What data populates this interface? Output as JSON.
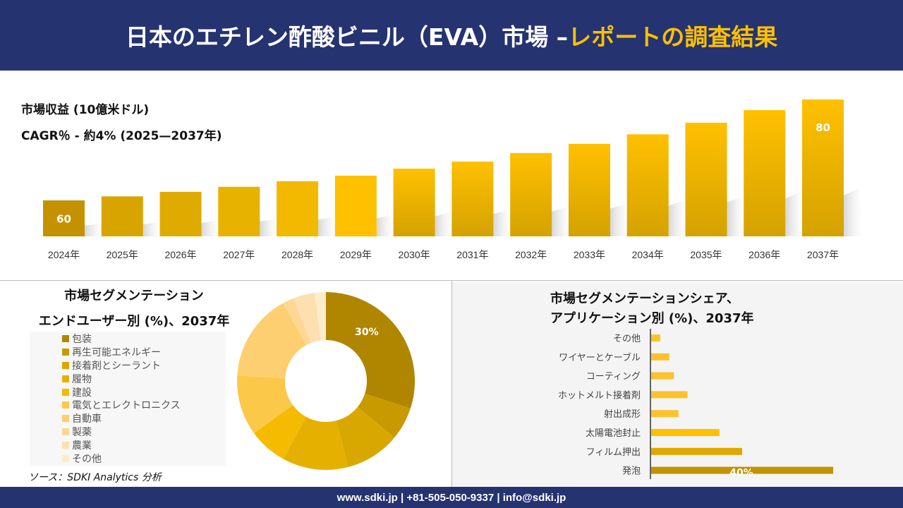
{
  "header": {
    "title_main": "日本のエチレン酢酸ビニル（EVA）市場 –",
    "title_accent": "レポートの調査結果"
  },
  "footer": {
    "contact": "www.sdki.jp | +81-505-050-9337 | info@sdki.jp"
  },
  "source": "ソース：SDKI Analytics 分析",
  "colors": {
    "header_bg": "#253370",
    "accent": "#ffc000"
  },
  "chart_data": [
    {
      "type": "bar",
      "title": "市場収益 (10億米ドル)",
      "subtitle": "CAGR％ - 約4% (2025—2037年)",
      "categories": [
        "2024年",
        "2025年",
        "2026年",
        "2027年",
        "2028年",
        "2029年",
        "2030年",
        "2031年",
        "2032年",
        "2033年",
        "2034年",
        "2035年",
        "2036年",
        "2037年"
      ],
      "values": [
        60,
        60.8,
        61.7,
        62.7,
        63.8,
        64.9,
        66.3,
        67.7,
        69.4,
        71.2,
        73.1,
        75.4,
        77.9,
        80
      ],
      "data_labels": {
        "0": "60",
        "13": "80"
      }
    },
    {
      "type": "pie",
      "donut": true,
      "title": "市場セグメンテーション",
      "subtitle": "エンドユーザー別 (%)、2037年",
      "categories": [
        "包装",
        "再生可能エネルギー",
        "接着剤とシーラント",
        "履物",
        "建設",
        "電気とエレクトロニクス",
        "自動車",
        "製薬",
        "農業",
        "その他"
      ],
      "values": [
        30,
        6,
        10,
        12,
        7,
        11,
        16,
        2,
        4,
        2
      ],
      "colors": [
        "#b08500",
        "#c89a00",
        "#d9a800",
        "#e6b000",
        "#f5bb00",
        "#fcc84a",
        "#fdcf70",
        "#fdd793",
        "#fde0b0",
        "#fdeccc"
      ],
      "data_labels": {
        "0": "30%"
      },
      "legend": "left"
    },
    {
      "type": "bar",
      "orientation": "horizontal",
      "title": "市場セグメンテーションシェア、",
      "subtitle": "アプリケーション別 (%)、2037年",
      "categories": [
        "その他",
        "ワイヤーとケーブル",
        "コーティング",
        "ホットメルト接着剤",
        "射出成形",
        "太陽電池封止",
        "フィルム押出",
        "発泡"
      ],
      "values": [
        2,
        4,
        5,
        8,
        6,
        15,
        20,
        40
      ],
      "colors": [
        "#fcc22e",
        "#fcc22e",
        "#fcc22e",
        "#fcc22e",
        "#fcc22e",
        "#ffc000",
        "#e0a800",
        "#c29200"
      ],
      "data_labels": {
        "7": "40%"
      }
    }
  ]
}
